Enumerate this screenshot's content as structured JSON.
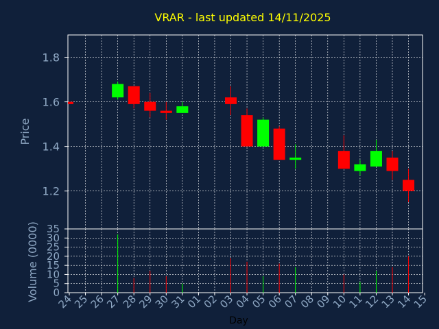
{
  "chart_data": {
    "type": "candlestick",
    "title": "VRAR - last updated 14/11/2025",
    "xlabel": "Day",
    "x_tick_labels": [
      "24",
      "25",
      "26",
      "27",
      "28",
      "29",
      "30",
      "31",
      "01",
      "02",
      "03",
      "04",
      "05",
      "06",
      "07",
      "08",
      "09",
      "10",
      "11",
      "12",
      "13",
      "14",
      "15"
    ],
    "price_panel": {
      "ylabel": "Price",
      "ylim": [
        1.03,
        1.9
      ],
      "yticks": [
        1.2,
        1.4,
        1.6,
        1.8
      ],
      "ytick_labels": [
        "1.2",
        "1.4",
        "1.6",
        "1.8"
      ],
      "grid": true
    },
    "volume_panel": {
      "ylabel": "Volume (0000)",
      "ylim": [
        0,
        35
      ],
      "yticks": [
        0,
        5,
        10,
        15,
        20,
        25,
        30,
        35
      ],
      "ytick_labels": [
        "0",
        "5",
        "10",
        "15",
        "20",
        "25",
        "30",
        "35"
      ],
      "grid": true
    },
    "up_color": "#00ff00",
    "down_color": "#ff0000",
    "candles": [
      {
        "day": "24",
        "open": 1.6,
        "close": 1.59,
        "high": 1.6,
        "low": 1.59,
        "volume": 0
      },
      {
        "day": "27",
        "open": 1.62,
        "close": 1.68,
        "high": 1.69,
        "low": 1.61,
        "volume": 32
      },
      {
        "day": "28",
        "open": 1.67,
        "close": 1.59,
        "high": 1.67,
        "low": 1.57,
        "volume": 8
      },
      {
        "day": "29",
        "open": 1.6,
        "close": 1.56,
        "high": 1.64,
        "low": 1.53,
        "volume": 12
      },
      {
        "day": "30",
        "open": 1.56,
        "close": 1.55,
        "high": 1.6,
        "low": 1.52,
        "volume": 9
      },
      {
        "day": "31",
        "open": 1.55,
        "close": 1.58,
        "high": 1.6,
        "low": 1.55,
        "volume": 5
      },
      {
        "day": "03",
        "open": 1.62,
        "close": 1.59,
        "high": 1.67,
        "low": 1.54,
        "volume": 19
      },
      {
        "day": "04",
        "open": 1.54,
        "close": 1.4,
        "high": 1.57,
        "low": 1.4,
        "volume": 17
      },
      {
        "day": "05",
        "open": 1.4,
        "close": 1.52,
        "high": 1.53,
        "low": 1.4,
        "volume": 9
      },
      {
        "day": "06",
        "open": 1.48,
        "close": 1.34,
        "high": 1.49,
        "low": 1.34,
        "volume": 16
      },
      {
        "day": "07",
        "open": 1.34,
        "close": 1.35,
        "high": 1.41,
        "low": 1.3,
        "volume": 14
      },
      {
        "day": "10",
        "open": 1.38,
        "close": 1.3,
        "high": 1.45,
        "low": 1.3,
        "volume": 10
      },
      {
        "day": "11",
        "open": 1.29,
        "close": 1.32,
        "high": 1.34,
        "low": 1.27,
        "volume": 6
      },
      {
        "day": "12",
        "open": 1.31,
        "close": 1.38,
        "high": 1.43,
        "low": 1.31,
        "volume": 12
      },
      {
        "day": "13",
        "open": 1.35,
        "close": 1.29,
        "high": 1.38,
        "low": 1.25,
        "volume": 14
      },
      {
        "day": "14",
        "open": 1.25,
        "close": 1.2,
        "high": 1.3,
        "low": 1.15,
        "volume": 20
      }
    ]
  }
}
